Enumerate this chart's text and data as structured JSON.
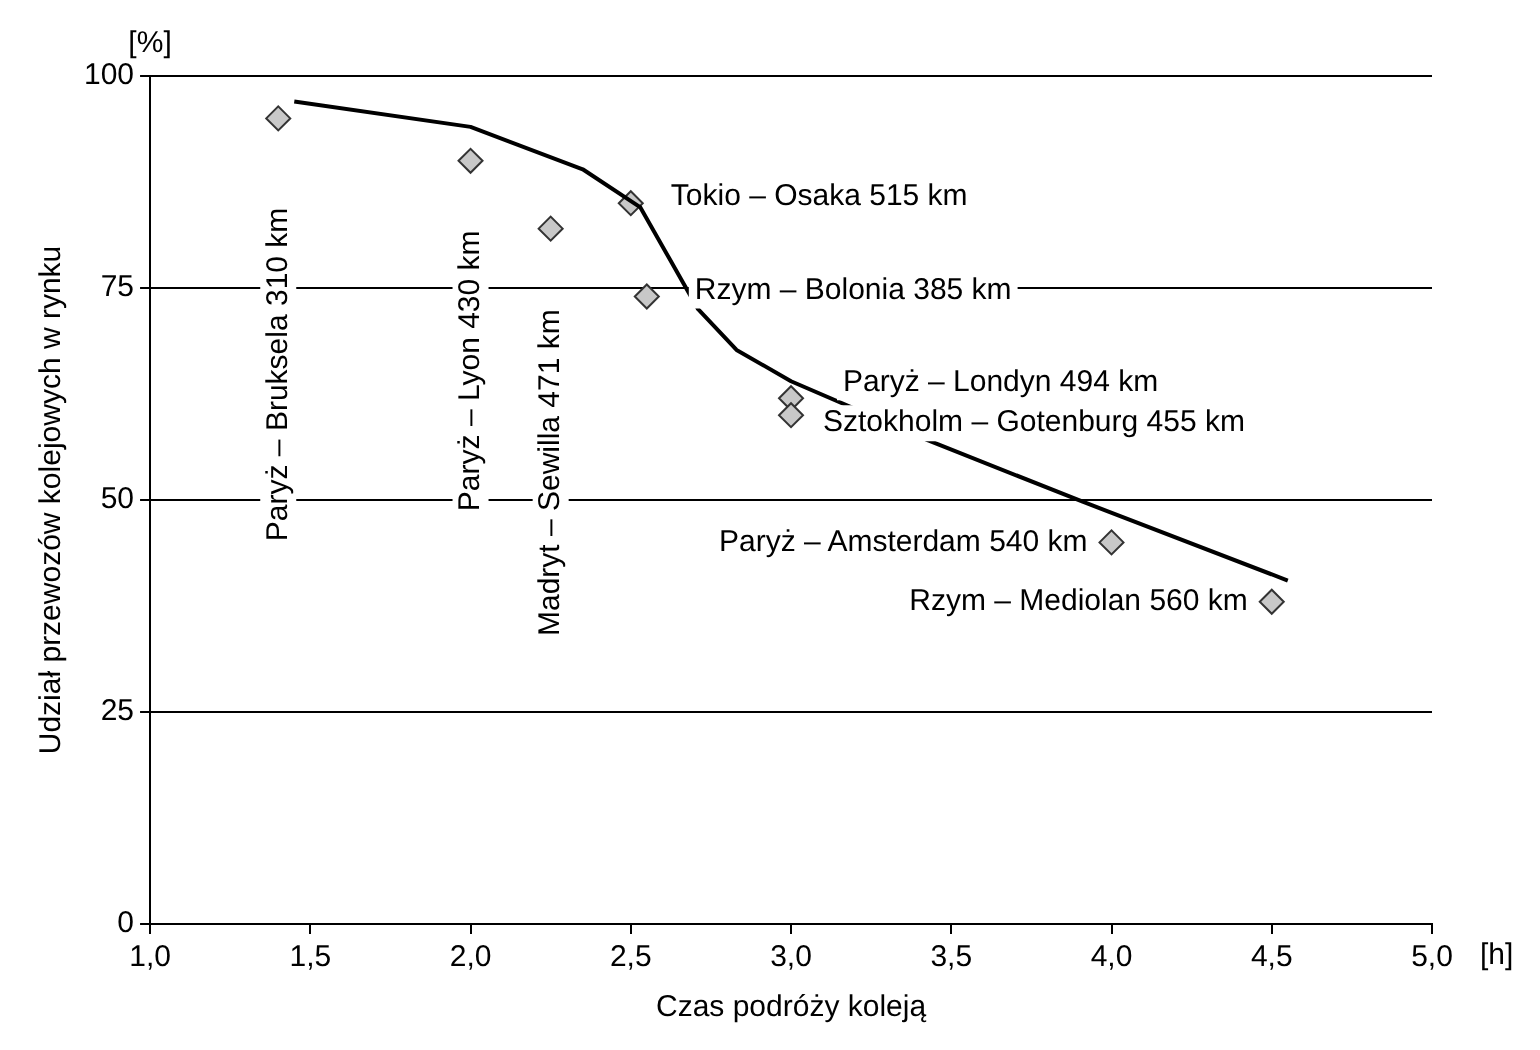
{
  "chart_data": {
    "type": "scatter",
    "xlabel": "Czas podróży koleją",
    "ylabel": "Udział przewozów kolejowych w rynku",
    "series": [
      {
        "type": "scatter",
        "color": "#c8c8c8",
        "marker": "diamond",
        "x": [
          1.4,
          2.0,
          2.25,
          2.5,
          2.55,
          3.0,
          3.0,
          4.0,
          4.5
        ],
        "values": [
          95,
          90,
          82,
          85,
          74,
          62,
          60,
          45,
          38
        ]
      },
      {
        "type": "line",
        "color": "#000000",
        "x": [
          1.45,
          2.0,
          2.35,
          2.53,
          2.62,
          2.71,
          2.83,
          3.0,
          3.43,
          3.91,
          4.55
        ],
        "values": [
          97,
          94,
          89,
          84.5,
          78.5,
          72.5,
          67.7,
          64,
          57,
          49.8,
          40.5
        ]
      }
    ],
    "xlim": [
      1.0,
      5.0
    ],
    "xticks": [
      {
        "value": 1.0,
        "label": "1,0"
      },
      {
        "value": 1.5,
        "label": "1,5"
      },
      {
        "value": 2.0,
        "label": "2,0"
      },
      {
        "value": 2.5,
        "label": "2,5"
      },
      {
        "value": 3.0,
        "label": "3,0"
      },
      {
        "value": 3.5,
        "label": "3,5"
      },
      {
        "value": 4.0,
        "label": "4,0"
      },
      {
        "value": 4.5,
        "label": "4,5"
      },
      {
        "value": 5.0,
        "label": "5,0"
      }
    ],
    "ylim": [
      0,
      100
    ],
    "yticks": [
      0,
      25,
      50,
      75,
      100
    ],
    "grid": "y",
    "line_style": "solid",
    "annotations": [
      "[%]",
      "[h]",
      {
        "text": "Paryż – Bruksela 310 km",
        "x": 1.4,
        "y": 95
      },
      {
        "text": "Paryż – Lyon 430 km",
        "x": 2.0,
        "y": 90
      },
      {
        "text": "Madryt – Sewilla 471 km",
        "x": 2.25,
        "y": 82
      },
      {
        "text": "Tokio – Osaka 515 km",
        "x": 2.5,
        "y": 85
      },
      {
        "text": "Rzym – Bolonia 385 km",
        "x": 2.55,
        "y": 74
      },
      {
        "text": "Paryż – Londyn 494 km",
        "x": 3.0,
        "y": 62
      },
      {
        "text": "Sztokholm – Gotenburg 455 km",
        "x": 3.0,
        "y": 60
      },
      {
        "text": "Paryż – Amsterdam 540 km",
        "x": 4.0,
        "y": 45
      },
      {
        "text": "Rzym – Mediolan 560 km",
        "x": 4.5,
        "y": 38
      }
    ]
  }
}
